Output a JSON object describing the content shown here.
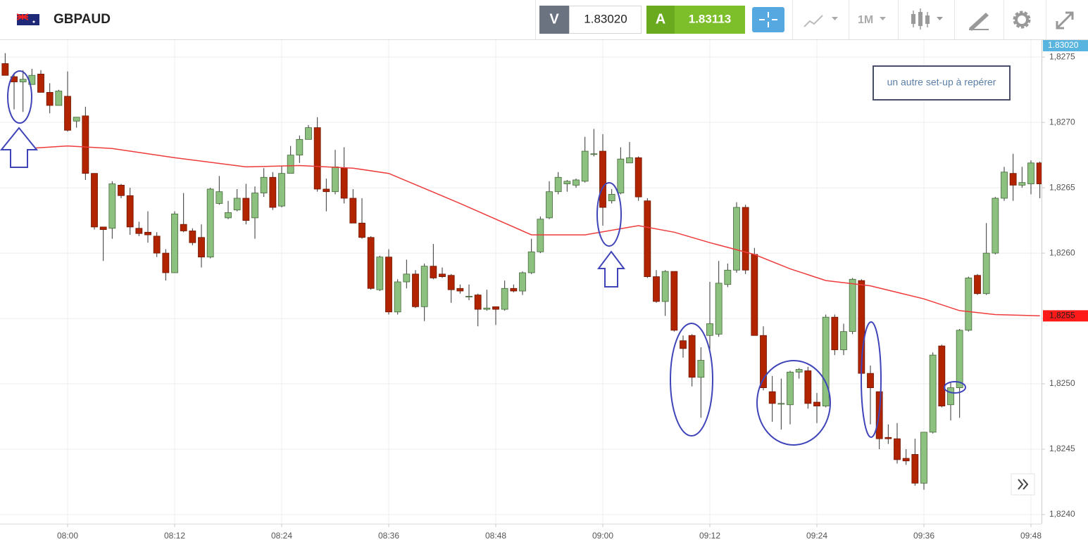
{
  "toolbar": {
    "symbol": "GBPAUD",
    "sell_label": "V",
    "sell_price": "1.83020",
    "buy_label": "A",
    "buy_price": "1.83113",
    "timeframe": "1M"
  },
  "chart_data": {
    "type": "candlestick",
    "x": [
      "07:53",
      "07:54",
      "07:55",
      "07:56",
      "07:57",
      "07:58",
      "07:59",
      "08:00",
      "08:01",
      "08:02",
      "08:03",
      "08:04",
      "08:05",
      "08:06",
      "08:07",
      "08:08",
      "08:09",
      "08:10",
      "08:11",
      "08:12",
      "08:13",
      "08:14",
      "08:15",
      "08:16",
      "08:17",
      "08:18",
      "08:19",
      "08:20",
      "08:21",
      "08:22",
      "08:23",
      "08:24",
      "08:25",
      "08:26",
      "08:27",
      "08:28",
      "08:29",
      "08:30",
      "08:31",
      "08:32",
      "08:33",
      "08:34",
      "08:35",
      "08:36",
      "08:37",
      "08:38",
      "08:39",
      "08:40",
      "08:41",
      "08:42",
      "08:43",
      "08:44",
      "08:45",
      "08:46",
      "08:47",
      "08:48",
      "08:49",
      "08:50",
      "08:51",
      "08:52",
      "08:53",
      "08:54",
      "08:55",
      "08:56",
      "08:57",
      "08:58",
      "08:59",
      "09:00",
      "09:01",
      "09:02",
      "09:03",
      "09:04",
      "09:05",
      "09:06",
      "09:07",
      "09:08",
      "09:09",
      "09:10",
      "09:11",
      "09:12",
      "09:13",
      "09:14",
      "09:15",
      "09:16",
      "09:17",
      "09:18",
      "09:19",
      "09:20",
      "09:21",
      "09:22",
      "09:23",
      "09:24",
      "09:25",
      "09:26",
      "09:27",
      "09:28",
      "09:29",
      "09:30",
      "09:31",
      "09:32",
      "09:33",
      "09:34",
      "09:35",
      "09:36",
      "09:37",
      "09:38",
      "09:39",
      "09:40",
      "09:41",
      "09:42",
      "09:43",
      "09:44",
      "09:45",
      "09:46",
      "09:47",
      "09:48",
      "09:49"
    ],
    "open": [
      1.82745,
      1.82735,
      1.82731,
      1.82729,
      1.82737,
      1.82723,
      1.82713,
      1.8272,
      1.82701,
      1.82705,
      1.82661,
      1.8262,
      1.82619,
      1.82652,
      1.82644,
      1.82619,
      1.82616,
      1.82613,
      1.826,
      1.82585,
      1.82622,
      1.82617,
      1.82612,
      1.82597,
      1.82638,
      1.82627,
      1.82633,
      1.82642,
      1.82627,
      1.82646,
      1.82658,
      1.82636,
      1.82661,
      1.82675,
      1.82687,
      1.82696,
      1.82649,
      1.82647,
      1.82665,
      1.82642,
      1.82623,
      1.82612,
      1.82572,
      1.82597,
      1.82555,
      1.82578,
      1.82584,
      1.82559,
      1.8259,
      1.82584,
      1.82583,
      1.82573,
      1.82567,
      1.82568,
      1.82557,
      1.82559,
      1.82557,
      1.82573,
      1.82571,
      1.82585,
      1.82601,
      1.82627,
      1.82647,
      1.82653,
      1.82652,
      1.82655,
      1.82676,
      1.82678,
      1.8264,
      1.82646,
      1.82669,
      1.82673,
      1.8264,
      1.82582,
      1.82563,
      1.82586,
      1.82533,
      1.82537,
      1.82505,
      1.82537,
      1.82538,
      1.82576,
      1.82587,
      1.82635,
      1.82599,
      1.82537,
      1.82494,
      1.82485,
      1.82484,
      1.82509,
      1.8251,
      1.82486,
      1.82483,
      1.82551,
      1.82526,
      1.8254,
      1.82579,
      1.82508,
      1.82494,
      1.82459,
      1.82458,
      1.82443,
      1.82446,
      1.82424,
      1.82463,
      1.82529,
      1.82484,
      1.82497,
      1.82541,
      1.82583,
      1.82569,
      1.826,
      1.82642,
      1.82661,
      1.82652,
      1.82653,
      1.82669
    ],
    "high": [
      1.82753,
      1.82738,
      1.8274,
      1.82741,
      1.8274,
      1.8273,
      1.82725,
      1.82739,
      1.82704,
      1.82712,
      1.82661,
      1.8262,
      1.82655,
      1.82653,
      1.8265,
      1.82624,
      1.82632,
      1.82616,
      1.82603,
      1.82632,
      1.82646,
      1.82619,
      1.82622,
      1.8265,
      1.82659,
      1.8264,
      1.82649,
      1.82653,
      1.82651,
      1.82665,
      1.82662,
      1.82667,
      1.82682,
      1.8269,
      1.82698,
      1.82704,
      1.82657,
      1.82679,
      1.82681,
      1.82649,
      1.82642,
      1.82613,
      1.82598,
      1.82603,
      1.8258,
      1.82595,
      1.82587,
      1.82592,
      1.82607,
      1.82589,
      1.82584,
      1.82576,
      1.82576,
      1.82569,
      1.82572,
      1.82559,
      1.82579,
      1.82576,
      1.82586,
      1.82611,
      1.82628,
      1.82655,
      1.82662,
      1.82656,
      1.82657,
      1.82689,
      1.82695,
      1.82691,
      1.82649,
      1.82681,
      1.82685,
      1.82674,
      1.82642,
      1.82587,
      1.82587,
      1.82586,
      1.82537,
      1.82538,
      1.82528,
      1.82578,
      1.82594,
      1.82592,
      1.82639,
      1.82637,
      1.82604,
      1.82544,
      1.82506,
      1.82504,
      1.8251,
      1.82512,
      1.82513,
      1.82493,
      1.82553,
      1.82553,
      1.82546,
      1.82581,
      1.8258,
      1.82514,
      1.82494,
      1.82469,
      1.8247,
      1.8245,
      1.82458,
      1.82463,
      1.82524,
      1.8253,
      1.82501,
      1.82542,
      1.82582,
      1.82584,
      1.82623,
      1.82643,
      1.82666,
      1.82676,
      1.82666,
      1.82671,
      1.8267
    ],
    "low": [
      1.82736,
      1.8271,
      1.82708,
      1.82729,
      1.82723,
      1.82707,
      1.82713,
      1.82693,
      1.82696,
      1.82656,
      1.82618,
      1.82594,
      1.82611,
      1.82642,
      1.82614,
      1.82613,
      1.82608,
      1.82597,
      1.82579,
      1.82585,
      1.82616,
      1.82606,
      1.82589,
      1.82596,
      1.82637,
      1.82626,
      1.82632,
      1.82622,
      1.82611,
      1.82643,
      1.82633,
      1.82635,
      1.82661,
      1.82669,
      1.82687,
      1.82647,
      1.82632,
      1.82645,
      1.82638,
      1.82623,
      1.82611,
      1.82572,
      1.82571,
      1.82553,
      1.82553,
      1.82573,
      1.82558,
      1.82548,
      1.8258,
      1.82581,
      1.82562,
      1.82569,
      1.82564,
      1.82544,
      1.82556,
      1.82545,
      1.82556,
      1.8257,
      1.82568,
      1.82584,
      1.826,
      1.82626,
      1.82645,
      1.82647,
      1.8265,
      1.82654,
      1.82674,
      1.82621,
      1.82638,
      1.82645,
      1.82669,
      1.8264,
      1.82581,
      1.82562,
      1.82552,
      1.8254,
      1.8252,
      1.82498,
      1.82474,
      1.82525,
      1.82536,
      1.82574,
      1.82585,
      1.82584,
      1.82537,
      1.82495,
      1.82471,
      1.82465,
      1.82469,
      1.82504,
      1.82481,
      1.8247,
      1.82482,
      1.82522,
      1.82522,
      1.82538,
      1.82508,
      1.82469,
      1.8245,
      1.82454,
      1.82439,
      1.82438,
      1.82422,
      1.82419,
      1.82462,
      1.82482,
      1.82472,
      1.82474,
      1.8254,
      1.82568,
      1.82568,
      1.82599,
      1.8264,
      1.8264,
      1.8265,
      1.82645,
      1.82642
    ],
    "close": [
      1.82736,
      1.82731,
      1.82733,
      1.82736,
      1.82723,
      1.82713,
      1.82724,
      1.82694,
      1.82704,
      1.82661,
      1.8262,
      1.82618,
      1.82653,
      1.82644,
      1.8262,
      1.82615,
      1.82614,
      1.826,
      1.82585,
      1.8263,
      1.82617,
      1.82608,
      1.82597,
      1.82649,
      1.82647,
      1.82631,
      1.82642,
      1.82625,
      1.82646,
      1.82658,
      1.82635,
      1.82661,
      1.82675,
      1.82687,
      1.82696,
      1.82649,
      1.82647,
      1.82666,
      1.82642,
      1.82623,
      1.82612,
      1.82573,
      1.82597,
      1.82555,
      1.82578,
      1.82584,
      1.82559,
      1.8259,
      1.82581,
      1.82582,
      1.82572,
      1.82571,
      1.82567,
      1.82557,
      1.82558,
      1.82557,
      1.82573,
      1.82571,
      1.82585,
      1.82601,
      1.82626,
      1.82647,
      1.82658,
      1.82655,
      1.82656,
      1.82678,
      1.82676,
      1.82635,
      1.82645,
      1.82672,
      1.82673,
      1.82643,
      1.82582,
      1.82563,
      1.82586,
      1.82541,
      1.82527,
      1.82505,
      1.82518,
      1.82546,
      1.82577,
      1.82587,
      1.82635,
      1.82587,
      1.82537,
      1.82497,
      1.82485,
      1.82485,
      1.82509,
      1.82511,
      1.82485,
      1.82483,
      1.82551,
      1.82526,
      1.8254,
      1.8258,
      1.82508,
      1.82497,
      1.82458,
      1.82458,
      1.82442,
      1.82441,
      1.82424,
      1.82463,
      1.82522,
      1.82483,
      1.82497,
      1.82541,
      1.82581,
      1.82569,
      1.826,
      1.82642,
      1.82662,
      1.82652,
      1.82654,
      1.82669,
      1.82653
    ],
    "up_color": "#8cc17f",
    "down_color": "#b22400",
    "ma": {
      "color": "#ee3b3b",
      "x": [
        "07:53",
        "08:00",
        "08:05",
        "08:12",
        "08:20",
        "08:26",
        "08:32",
        "08:36",
        "08:44",
        "08:52",
        "08:58",
        "09:04",
        "09:08",
        "09:12",
        "09:17",
        "09:21",
        "09:25",
        "09:30",
        "09:36",
        "09:40",
        "09:44",
        "09:49"
      ],
      "values": [
        1.82679,
        1.82682,
        1.8268,
        1.82673,
        1.82666,
        1.82667,
        1.82665,
        1.82661,
        1.82638,
        1.82614,
        1.82614,
        1.82621,
        1.82616,
        1.82608,
        1.82599,
        1.82588,
        1.82579,
        1.82575,
        1.82565,
        1.82556,
        1.82553,
        1.82552
      ],
      "last_label": "1,8255"
    },
    "current_label": "1.83020",
    "xlim": [
      "07:52",
      "09:50"
    ],
    "xticks": [
      "08:00",
      "08:12",
      "08:24",
      "08:36",
      "08:48",
      "09:00",
      "09:12",
      "09:24",
      "09:36",
      "09:48"
    ],
    "ylim": [
      1.82393,
      1.82763
    ],
    "yticks": [
      {
        "value": 1.824,
        "label": "1,8240"
      },
      {
        "value": 1.8245,
        "label": "1,8245"
      },
      {
        "value": 1.825,
        "label": "1,8250"
      },
      {
        "value": 1.8255,
        "label": "1,8255"
      },
      {
        "value": 1.826,
        "label": "1,8260"
      },
      {
        "value": 1.8265,
        "label": "1,8265"
      },
      {
        "value": 1.827,
        "label": "1,8270"
      },
      {
        "value": 1.8275,
        "label": "1,8275"
      }
    ],
    "grid": true,
    "annotation": "un autre set-up à repérer"
  }
}
